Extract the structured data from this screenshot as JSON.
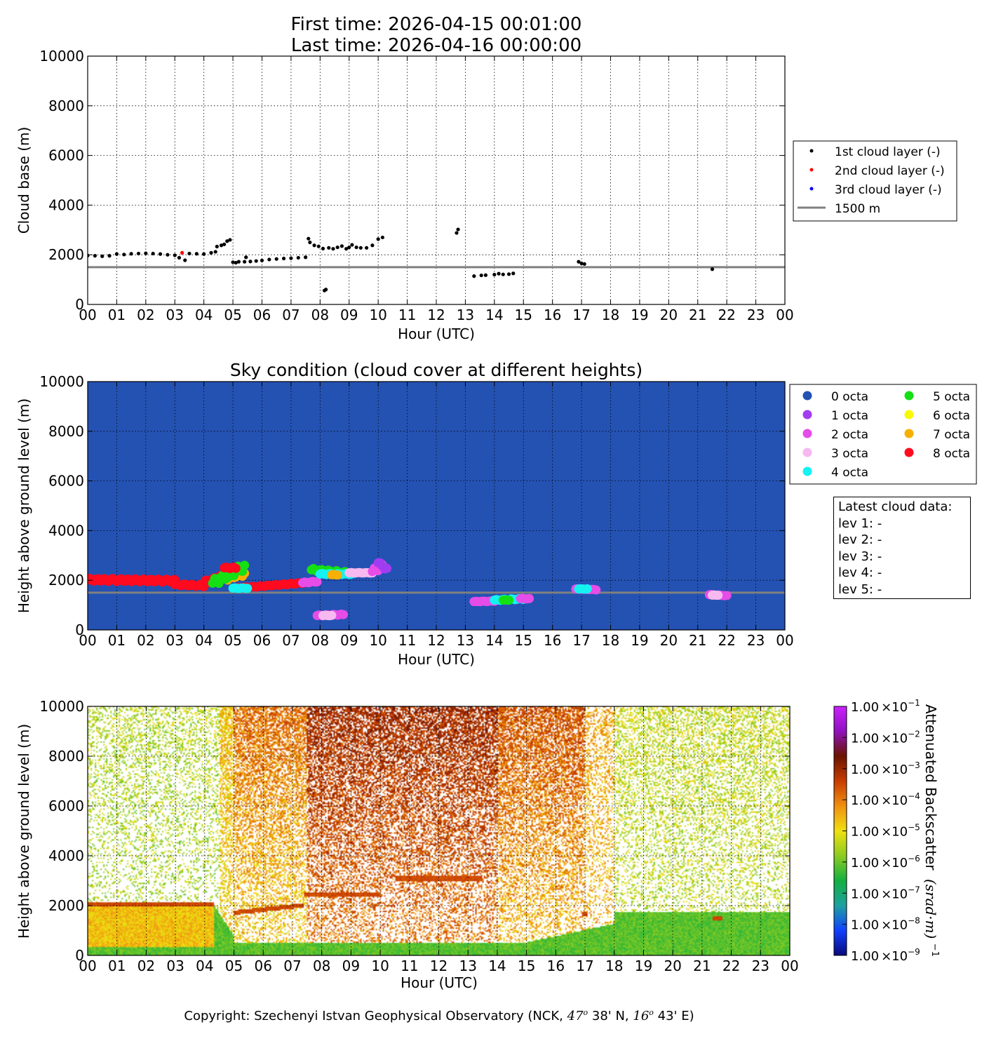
{
  "header": {
    "first_time": "First time: 2026-04-15 00:01:00",
    "last_time": "Last time: 2026-04-16 00:00:00"
  },
  "x_axis": {
    "label": "Hour (UTC)",
    "ticks": [
      "00",
      "01",
      "02",
      "03",
      "04",
      "05",
      "06",
      "07",
      "08",
      "09",
      "10",
      "11",
      "12",
      "13",
      "14",
      "15",
      "16",
      "17",
      "18",
      "19",
      "20",
      "21",
      "22",
      "23",
      "00"
    ]
  },
  "y_ticks": [
    "0",
    "2000",
    "4000",
    "6000",
    "8000",
    "10000"
  ],
  "reference_line": {
    "height_m": 1500,
    "color": "#808080",
    "label": "1500 m"
  },
  "panels": {
    "cloud_base": {
      "ylabel": "Cloud base (m)"
    },
    "sky_condition": {
      "title": "Sky condition (cloud cover at different heights)",
      "ylabel": "Height above ground level (m)",
      "background": "#2452b3"
    },
    "backscatter": {
      "ylabel": "Height above ground level (m)"
    }
  },
  "legend_cloud": [
    {
      "label": "1st cloud layer (-)",
      "color": "#000000"
    },
    {
      "label": "2nd cloud layer (-)",
      "color": "#ff0000"
    },
    {
      "label": "3rd cloud layer (-)",
      "color": "#0000ff"
    }
  ],
  "legend_octa": [
    {
      "label": "0 octa",
      "color": "#2452b3"
    },
    {
      "label": "1 octa",
      "color": "#a23cf0"
    },
    {
      "label": "2 octa",
      "color": "#e64ce8"
    },
    {
      "label": "3 octa",
      "color": "#f8b8f0"
    },
    {
      "label": "4 octa",
      "color": "#14f2f2"
    },
    {
      "label": "5 octa",
      "color": "#14e014"
    },
    {
      "label": "6 octa",
      "color": "#f8f800"
    },
    {
      "label": "7 octa",
      "color": "#f7b000"
    },
    {
      "label": "8 octa",
      "color": "#ff0a1e"
    }
  ],
  "latest_cloud": {
    "title": "Latest cloud data:",
    "levels": [
      "lev 1: -",
      "lev 2: -",
      "lev 3: -",
      "lev 4: -",
      "lev 5: -"
    ]
  },
  "colorbar": {
    "label": "Attenuated Backscatter",
    "unit": "(srad·m)",
    "unit_exponent": "−1",
    "ticks": [
      {
        "mantissa": "1.00",
        "exp": "−1"
      },
      {
        "mantissa": "1.00",
        "exp": "−2"
      },
      {
        "mantissa": "1.00",
        "exp": "−3"
      },
      {
        "mantissa": "1.00",
        "exp": "−4"
      },
      {
        "mantissa": "1.00",
        "exp": "−5"
      },
      {
        "mantissa": "1.00",
        "exp": "−6"
      },
      {
        "mantissa": "1.00",
        "exp": "−7"
      },
      {
        "mantissa": "1.00",
        "exp": "−8"
      },
      {
        "mantissa": "1.00",
        "exp": "−9"
      }
    ],
    "colors": [
      "#0a0a7a",
      "#1040ff",
      "#1ea0a0",
      "#12b040",
      "#8ccc20",
      "#f0e010",
      "#f09010",
      "#c83c00",
      "#6a1400",
      "#9010c0",
      "#cc22ff"
    ]
  },
  "copyright": {
    "prefix": "Copyright: Szechenyi Istvan Geophysical Observatory (NCK, ",
    "lat_deg": "47",
    "lat_min": " 38' N, ",
    "lon_deg": "16",
    "lon_min": " 43' E)",
    "deg_symbol": "o"
  },
  "chart_data": [
    {
      "type": "scatter",
      "title": "",
      "xlabel": "Hour (UTC)",
      "ylabel": "Cloud base (m)",
      "xlim": [
        0,
        24
      ],
      "ylim": [
        0,
        10000
      ],
      "grid": true,
      "legend_position": "right",
      "series": [
        {
          "name": "1st cloud layer (-)",
          "color": "#000000",
          "points": [
            [
              0.0,
              1970
            ],
            [
              0.25,
              1960
            ],
            [
              0.5,
              1940
            ],
            [
              0.75,
              1960
            ],
            [
              1.0,
              2030
            ],
            [
              1.25,
              2010
            ],
            [
              1.5,
              2040
            ],
            [
              1.75,
              2050
            ],
            [
              2.0,
              2060
            ],
            [
              2.25,
              2050
            ],
            [
              2.5,
              2030
            ],
            [
              2.75,
              2000
            ],
            [
              3.0,
              1980
            ],
            [
              3.15,
              1880
            ],
            [
              3.35,
              1780
            ],
            [
              3.5,
              2050
            ],
            [
              3.75,
              2040
            ],
            [
              4.0,
              2030
            ],
            [
              4.25,
              2080
            ],
            [
              4.4,
              2120
            ],
            [
              4.45,
              2330
            ],
            [
              4.6,
              2380
            ],
            [
              4.7,
              2420
            ],
            [
              4.8,
              2550
            ],
            [
              4.9,
              2600
            ],
            [
              5.0,
              1700
            ],
            [
              5.1,
              1680
            ],
            [
              5.2,
              1720
            ],
            [
              5.4,
              1720
            ],
            [
              5.45,
              1900
            ],
            [
              5.6,
              1730
            ],
            [
              5.8,
              1750
            ],
            [
              6.0,
              1770
            ],
            [
              6.25,
              1810
            ],
            [
              6.5,
              1830
            ],
            [
              6.75,
              1850
            ],
            [
              7.0,
              1860
            ],
            [
              7.25,
              1880
            ],
            [
              7.5,
              1900
            ],
            [
              7.6,
              2650
            ],
            [
              7.65,
              2500
            ],
            [
              7.8,
              2380
            ],
            [
              7.95,
              2340
            ],
            [
              8.1,
              2250
            ],
            [
              8.15,
              560
            ],
            [
              8.2,
              600
            ],
            [
              8.3,
              2280
            ],
            [
              8.45,
              2240
            ],
            [
              8.6,
              2300
            ],
            [
              8.75,
              2350
            ],
            [
              8.9,
              2240
            ],
            [
              9.0,
              2300
            ],
            [
              9.1,
              2400
            ],
            [
              9.25,
              2300
            ],
            [
              9.4,
              2280
            ],
            [
              9.6,
              2280
            ],
            [
              9.8,
              2380
            ],
            [
              10.0,
              2630
            ],
            [
              10.15,
              2700
            ],
            [
              12.7,
              2880
            ],
            [
              12.75,
              3020
            ],
            [
              13.3,
              1140
            ],
            [
              13.55,
              1170
            ],
            [
              13.7,
              1180
            ],
            [
              14.0,
              1200
            ],
            [
              14.15,
              1240
            ],
            [
              14.3,
              1210
            ],
            [
              14.5,
              1220
            ],
            [
              14.65,
              1250
            ],
            [
              16.9,
              1720
            ],
            [
              17.0,
              1650
            ],
            [
              17.1,
              1630
            ],
            [
              21.5,
              1420
            ]
          ]
        },
        {
          "name": "2nd cloud layer (-)",
          "color": "#ff0000",
          "points": [
            [
              3.25,
              2080
            ]
          ]
        },
        {
          "name": "3rd cloud layer (-)",
          "color": "#0000ff",
          "points": []
        }
      ],
      "reference_line": {
        "y": 1500,
        "label": "1500 m"
      }
    },
    {
      "type": "scatter",
      "title": "Sky condition (cloud cover at different heights)",
      "xlabel": "Hour (UTC)",
      "ylabel": "Height above ground level (m)",
      "xlim": [
        0,
        24
      ],
      "ylim": [
        0,
        10000
      ],
      "grid": true,
      "legend_position": "right",
      "segments": [
        {
          "octa": 8,
          "x_start": 0.0,
          "x_end": 3.0,
          "y_start": 2020,
          "y_end": 1980,
          "wave": 60
        },
        {
          "octa": 8,
          "x_start": 3.0,
          "x_end": 4.0,
          "y_start": 1830,
          "y_end": 1780,
          "wave": 40
        },
        {
          "octa": 8,
          "x_start": 4.0,
          "x_end": 4.9,
          "y_start": 1900,
          "y_end": 2250,
          "wave": 80
        },
        {
          "octa": 7,
          "x_start": 4.6,
          "x_end": 5.4,
          "y_start": 2050,
          "y_end": 2300,
          "wave": 120
        },
        {
          "octa": 5,
          "x_start": 4.3,
          "x_end": 5.4,
          "y_start": 1880,
          "y_end": 2550,
          "wave": 150
        },
        {
          "octa": 8,
          "x_start": 4.7,
          "x_end": 5.1,
          "y_start": 2500,
          "y_end": 2500,
          "wave": 30
        },
        {
          "octa": 8,
          "x_start": 5.1,
          "x_end": 7.5,
          "y_start": 1680,
          "y_end": 1900,
          "wave": 20
        },
        {
          "octa": 4,
          "x_start": 5.0,
          "x_end": 5.5,
          "y_start": 1680,
          "y_end": 1680,
          "wave": 10
        },
        {
          "octa": 2,
          "x_start": 7.4,
          "x_end": 7.9,
          "y_start": 1900,
          "y_end": 1950,
          "wave": 20
        },
        {
          "octa": 5,
          "x_start": 7.7,
          "x_end": 9.0,
          "y_start": 2420,
          "y_end": 2280,
          "wave": 60
        },
        {
          "octa": 4,
          "x_start": 8.0,
          "x_end": 9.1,
          "y_start": 2250,
          "y_end": 2250,
          "wave": 20
        },
        {
          "octa": 7,
          "x_start": 8.4,
          "x_end": 8.6,
          "y_start": 2220,
          "y_end": 2220,
          "wave": 10
        },
        {
          "octa": 3,
          "x_start": 9.0,
          "x_end": 9.8,
          "y_start": 2300,
          "y_end": 2300,
          "wave": 10
        },
        {
          "octa": 2,
          "x_start": 9.8,
          "x_end": 10.2,
          "y_start": 2350,
          "y_end": 2600,
          "wave": 100
        },
        {
          "octa": 1,
          "x_start": 10.0,
          "x_end": 10.3,
          "y_start": 2700,
          "y_end": 2450,
          "wave": 60
        },
        {
          "octa": 2,
          "x_start": 7.9,
          "x_end": 8.8,
          "y_start": 580,
          "y_end": 620,
          "wave": 20
        },
        {
          "octa": 3,
          "x_start": 8.1,
          "x_end": 8.4,
          "y_start": 580,
          "y_end": 580,
          "wave": 10
        },
        {
          "octa": 2,
          "x_start": 13.3,
          "x_end": 14.0,
          "y_start": 1140,
          "y_end": 1160,
          "wave": 10
        },
        {
          "octa": 4,
          "x_start": 14.0,
          "x_end": 15.0,
          "y_start": 1200,
          "y_end": 1250,
          "wave": 20
        },
        {
          "octa": 5,
          "x_start": 14.3,
          "x_end": 14.5,
          "y_start": 1200,
          "y_end": 1200,
          "wave": 5
        },
        {
          "octa": 2,
          "x_start": 14.9,
          "x_end": 15.2,
          "y_start": 1260,
          "y_end": 1260,
          "wave": 10
        },
        {
          "octa": 2,
          "x_start": 16.8,
          "x_end": 17.5,
          "y_start": 1650,
          "y_end": 1620,
          "wave": 10
        },
        {
          "octa": 4,
          "x_start": 16.9,
          "x_end": 17.2,
          "y_start": 1650,
          "y_end": 1650,
          "wave": 10
        },
        {
          "octa": 2,
          "x_start": 21.4,
          "x_end": 22.0,
          "y_start": 1420,
          "y_end": 1380,
          "wave": 10
        },
        {
          "octa": 3,
          "x_start": 21.5,
          "x_end": 21.7,
          "y_start": 1400,
          "y_end": 1400,
          "wave": 5
        }
      ],
      "reference_line": {
        "y": 1500
      }
    },
    {
      "type": "heatmap",
      "title": "",
      "xlabel": "Hour (UTC)",
      "ylabel": "Height above ground level (m)",
      "xlim": [
        0,
        24
      ],
      "ylim": [
        0,
        10000
      ],
      "colorbar_label": "Attenuated Backscatter (srad·m)^-1",
      "colorbar_range_log10": [
        -9,
        -1
      ],
      "cloud_layers": [
        {
          "x_start": 0.0,
          "x_end": 4.3,
          "y": 2050
        },
        {
          "x_start": 5.0,
          "x_end": 7.4,
          "y_start": 1700,
          "y_end": 2000
        },
        {
          "x_start": 7.4,
          "x_end": 10.0,
          "y": 2450
        },
        {
          "x_start": 10.5,
          "x_end": 13.5,
          "y": 3080
        },
        {
          "x_start": 16.9,
          "x_end": 17.1,
          "y": 1650
        },
        {
          "x_start": 21.4,
          "x_end": 21.7,
          "y": 1450
        }
      ]
    }
  ]
}
